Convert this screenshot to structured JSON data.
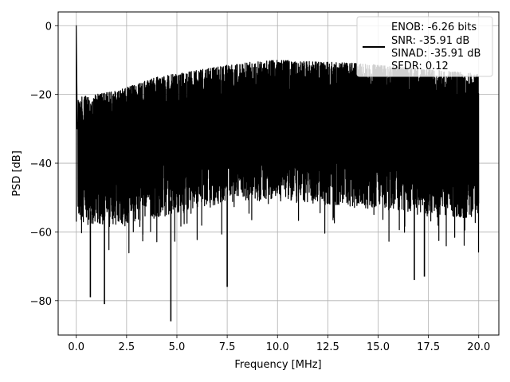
{
  "chart_data": {
    "type": "line",
    "title": "",
    "xlabel": "Frequency [MHz]",
    "ylabel": "PSD [dB]",
    "xlim": [
      -0.9,
      21.0
    ],
    "ylim": [
      -90,
      4
    ],
    "xticks": [
      0.0,
      2.5,
      5.0,
      7.5,
      10.0,
      12.5,
      15.0,
      17.5,
      20.0
    ],
    "xtick_labels": [
      "0.0",
      "2.5",
      "5.0",
      "7.5",
      "10.0",
      "12.5",
      "15.0",
      "17.5",
      "20.0"
    ],
    "yticks": [
      0,
      -20,
      -40,
      -60,
      -80
    ],
    "ytick_labels": [
      "0",
      "−20",
      "−40",
      "−60",
      "−80"
    ],
    "grid": true,
    "legend_position": "top-right",
    "series": [
      {
        "color": "#000000",
        "x_range": [
          0,
          20
        ],
        "peak": {
          "x": 0.0,
          "y": 0
        },
        "upper_envelope": [
          {
            "x": 0.0,
            "y": -21
          },
          {
            "x": 1.0,
            "y": -20
          },
          {
            "x": 2.0,
            "y": -19
          },
          {
            "x": 3.0,
            "y": -17
          },
          {
            "x": 4.0,
            "y": -15
          },
          {
            "x": 5.0,
            "y": -14
          },
          {
            "x": 6.0,
            "y": -13
          },
          {
            "x": 7.0,
            "y": -12
          },
          {
            "x": 8.0,
            "y": -11
          },
          {
            "x": 10.0,
            "y": -10
          },
          {
            "x": 12.0,
            "y": -10.5
          },
          {
            "x": 14.0,
            "y": -11
          },
          {
            "x": 16.0,
            "y": -12
          },
          {
            "x": 18.0,
            "y": -13
          },
          {
            "x": 20.0,
            "y": -14
          }
        ],
        "lower_envelope": [
          {
            "x": 0.0,
            "y": -62
          },
          {
            "x": 2.0,
            "y": -62
          },
          {
            "x": 4.0,
            "y": -60
          },
          {
            "x": 6.0,
            "y": -57
          },
          {
            "x": 8.0,
            "y": -55
          },
          {
            "x": 10.0,
            "y": -55
          },
          {
            "x": 12.0,
            "y": -56
          },
          {
            "x": 14.0,
            "y": -57
          },
          {
            "x": 16.0,
            "y": -58
          },
          {
            "x": 18.0,
            "y": -60
          },
          {
            "x": 20.0,
            "y": -60
          }
        ],
        "notable_dips": [
          {
            "x": 0.7,
            "y": -79
          },
          {
            "x": 1.4,
            "y": -81
          },
          {
            "x": 4.7,
            "y": -86
          },
          {
            "x": 7.5,
            "y": -76
          },
          {
            "x": 16.8,
            "y": -74
          },
          {
            "x": 17.3,
            "y": -73
          }
        ]
      }
    ],
    "legend": {
      "lines": [
        "ENOB: -6.26 bits",
        "SNR: -35.91 dB",
        "SINAD: -35.91 dB",
        "SFDR: 0.12"
      ]
    }
  }
}
